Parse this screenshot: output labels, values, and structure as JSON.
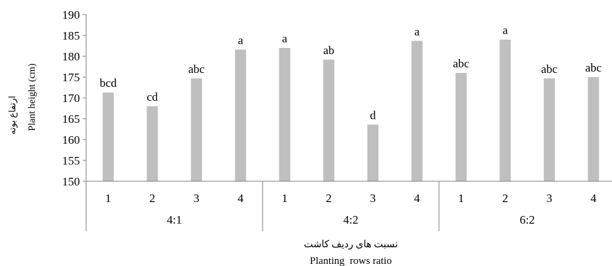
{
  "chart_data": {
    "type": "bar",
    "ylabel": "Plant height (cm)",
    "ylabel_fa": "ارتفاع بوته",
    "xlabel": "Planting  rows ratio",
    "xlabel_fa": "نسبت های ردیف کاشت",
    "ylim": [
      150,
      190
    ],
    "yticks": [
      "150",
      "155",
      "160",
      "165",
      "170",
      "175",
      "180",
      "185",
      "190"
    ],
    "grid": false,
    "groups": [
      {
        "name": "4:1",
        "categories": [
          "1",
          "2",
          "3",
          "4"
        ],
        "values": [
          171.3,
          168.0,
          174.7,
          181.6
        ],
        "labels": [
          "bcd",
          "cd",
          "abc",
          "a"
        ]
      },
      {
        "name": "4:2",
        "categories": [
          "1",
          "2",
          "3",
          "4"
        ],
        "values": [
          182.0,
          179.2,
          163.6,
          183.7
        ],
        "labels": [
          "a",
          "ab",
          "d",
          "a"
        ]
      },
      {
        "name": "6:2",
        "categories": [
          "1",
          "2",
          "3",
          "4"
        ],
        "values": [
          176.0,
          184.0,
          174.7,
          175.0
        ],
        "labels": [
          "abc",
          "a",
          "abc",
          "abc"
        ]
      }
    ],
    "colors": {
      "bar": "#bfbfbf",
      "axis": "#808080"
    }
  }
}
